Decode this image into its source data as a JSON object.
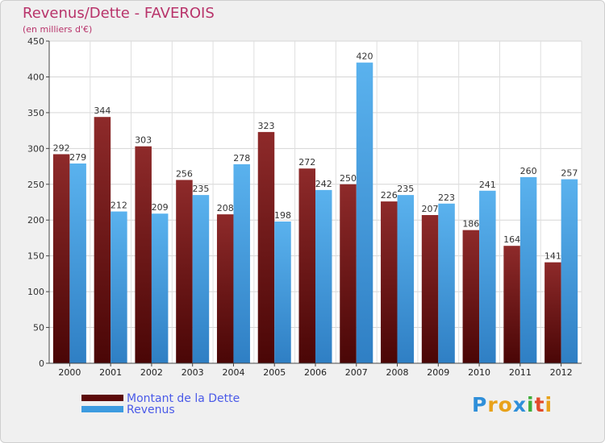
{
  "header": {
    "title": "Revenus/Dette - FAVEROIS",
    "subtitle": "(en milliers d'€)"
  },
  "chart_data": {
    "type": "bar",
    "categories": [
      "2000",
      "2001",
      "2002",
      "2003",
      "2004",
      "2005",
      "2006",
      "2007",
      "2008",
      "2009",
      "2010",
      "2011",
      "2012"
    ],
    "series": [
      {
        "name": "Montant de la Dette",
        "values": [
          292,
          344,
          303,
          256,
          208,
          323,
          272,
          250,
          226,
          207,
          186,
          164,
          141
        ],
        "color": "#8b1a1a"
      },
      {
        "name": "Revenus",
        "values": [
          279,
          212,
          209,
          235,
          278,
          198,
          242,
          420,
          235,
          223,
          241,
          260,
          257
        ],
        "color": "#4aa3e6"
      }
    ],
    "ylim": [
      0,
      450
    ],
    "yticks": [
      0,
      50,
      100,
      150,
      200,
      250,
      300,
      350,
      400,
      450
    ],
    "grid": true,
    "title": "Revenus/Dette - FAVEROIS",
    "ylabel": "(en milliers d'€)",
    "xlabel": ""
  },
  "legend": {
    "items": [
      {
        "label": "Montant de la Dette",
        "color": "#5c0a0a"
      },
      {
        "label": "Revenus",
        "color": "#3d9be0"
      }
    ]
  },
  "logo": {
    "letters": [
      "P",
      "r",
      "o",
      "x",
      "i",
      "t",
      "i"
    ],
    "colors": [
      "#2f8fd9",
      "#e8a21a",
      "#e8a21a",
      "#2f8fd9",
      "#3fae3a",
      "#e24a2a",
      "#e8a21a"
    ]
  }
}
